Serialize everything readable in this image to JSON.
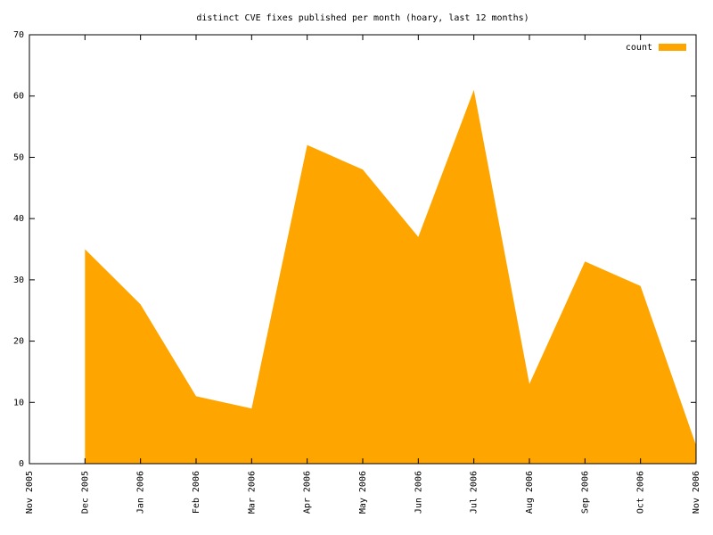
{
  "chart_data": {
    "type": "area",
    "title": "distinct CVE fixes published per month (hoary, last 12 months)",
    "x": [
      "Nov 2005",
      "Dec 2005",
      "Jan 2006",
      "Feb 2006",
      "Mar 2006",
      "Apr 2006",
      "May 2006",
      "Jun 2006",
      "Jul 2006",
      "Aug 2006",
      "Sep 2006",
      "Oct 2006",
      "Nov 2006"
    ],
    "series": [
      {
        "name": "count",
        "color": "#ffa500",
        "values": [
          null,
          35,
          26,
          11,
          9,
          52,
          48,
          37,
          61,
          13,
          33,
          29,
          3
        ]
      }
    ],
    "ylim": [
      0,
      70
    ],
    "yticks": [
      0,
      10,
      20,
      30,
      40,
      50,
      60,
      70
    ],
    "legend": "top-right"
  }
}
